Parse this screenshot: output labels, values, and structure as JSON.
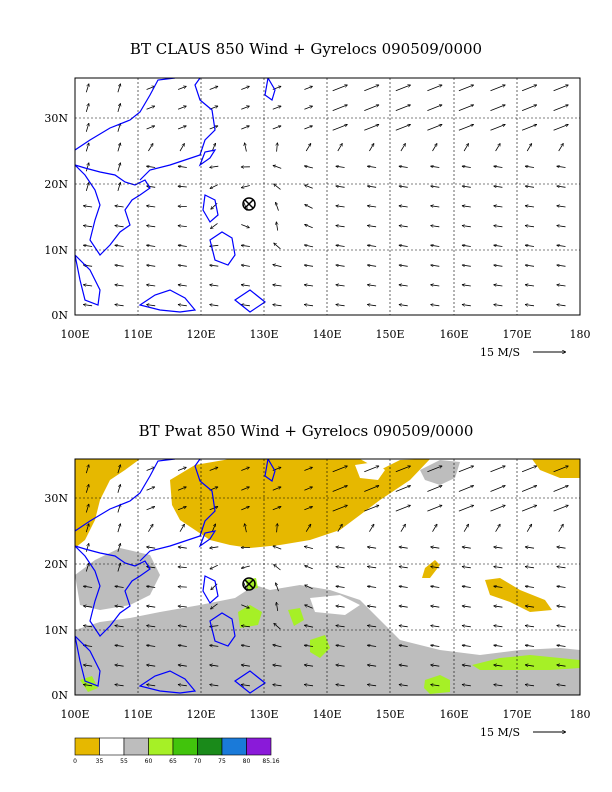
{
  "panels": [
    {
      "id": "top",
      "title": "BT CLAUS 850 Wind + Gyrelocs 090509/0000",
      "reference_vector": "15 M/S",
      "x_ticks": [
        "100E",
        "110E",
        "120E",
        "130E",
        "140E",
        "150E",
        "160E",
        "170E",
        "180"
      ],
      "y_ticks": [
        "0N",
        "10N",
        "20N",
        "30N"
      ],
      "gyre_location": {
        "lon": 127.5,
        "lat": 17.0
      }
    },
    {
      "id": "bottom",
      "title": "BT Pwat 850 Wind + Gyrelocs 090509/0000",
      "reference_vector": "15 M/S",
      "x_ticks": [
        "100E",
        "110E",
        "120E",
        "130E",
        "140E",
        "150E",
        "160E",
        "170E",
        "180"
      ],
      "y_ticks": [
        "0N",
        "10N",
        "20N",
        "30N"
      ],
      "gyre_location": {
        "lon": 127.5,
        "lat": 17.0
      }
    }
  ],
  "map_extent": {
    "lon": [
      100,
      180
    ],
    "lat": [
      0,
      36
    ]
  },
  "colorbar": {
    "labels": [
      "0",
      "35",
      "55",
      "60",
      "65",
      "70",
      "75",
      "80",
      "85.16"
    ],
    "colors": [
      "#e6b800",
      "#ffffff",
      "#bdbdbd",
      "#a6f026",
      "#41c40c",
      "#1a8a1a",
      "#1a7ad9",
      "#8a1ad9"
    ]
  },
  "colors": {
    "coastline": "#0000ff",
    "arrow": "#000000",
    "grid": "#000000"
  }
}
